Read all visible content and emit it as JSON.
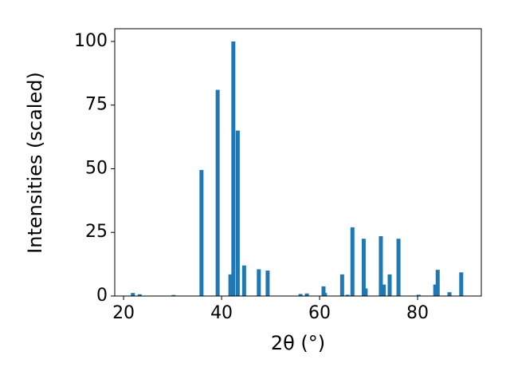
{
  "chart_data": {
    "type": "bar",
    "x_label": "2θ (°)",
    "y_label": "Intensities (scaled)",
    "x": [
      21.9,
      23.3,
      30.2,
      35.9,
      39.2,
      41.8,
      42.4,
      43.3,
      44.6,
      47.6,
      49.4,
      56.1,
      57.4,
      60.8,
      61.1,
      64.6,
      65.7,
      66.7,
      69.0,
      69.4,
      72.5,
      73.1,
      74.3,
      76.1,
      80.2,
      83.6,
      84.1,
      86.5,
      88.9
    ],
    "values": [
      1.2,
      0.7,
      0.4,
      49.5,
      81,
      8.5,
      100,
      65,
      12,
      10.5,
      10,
      0.8,
      1,
      3.8,
      1.2,
      8.5,
      0.5,
      27,
      22.5,
      3,
      23.5,
      4.5,
      8.5,
      22.5,
      0.5,
      4.5,
      10.3,
      1.5,
      9.3
    ],
    "color": "#1f77b4",
    "xlim": [
      18.2,
      93.0
    ],
    "xticks": [
      20,
      40,
      60,
      80
    ],
    "ylim": [
      0,
      105
    ],
    "yticks": [
      0,
      25,
      50,
      75,
      100
    ]
  }
}
